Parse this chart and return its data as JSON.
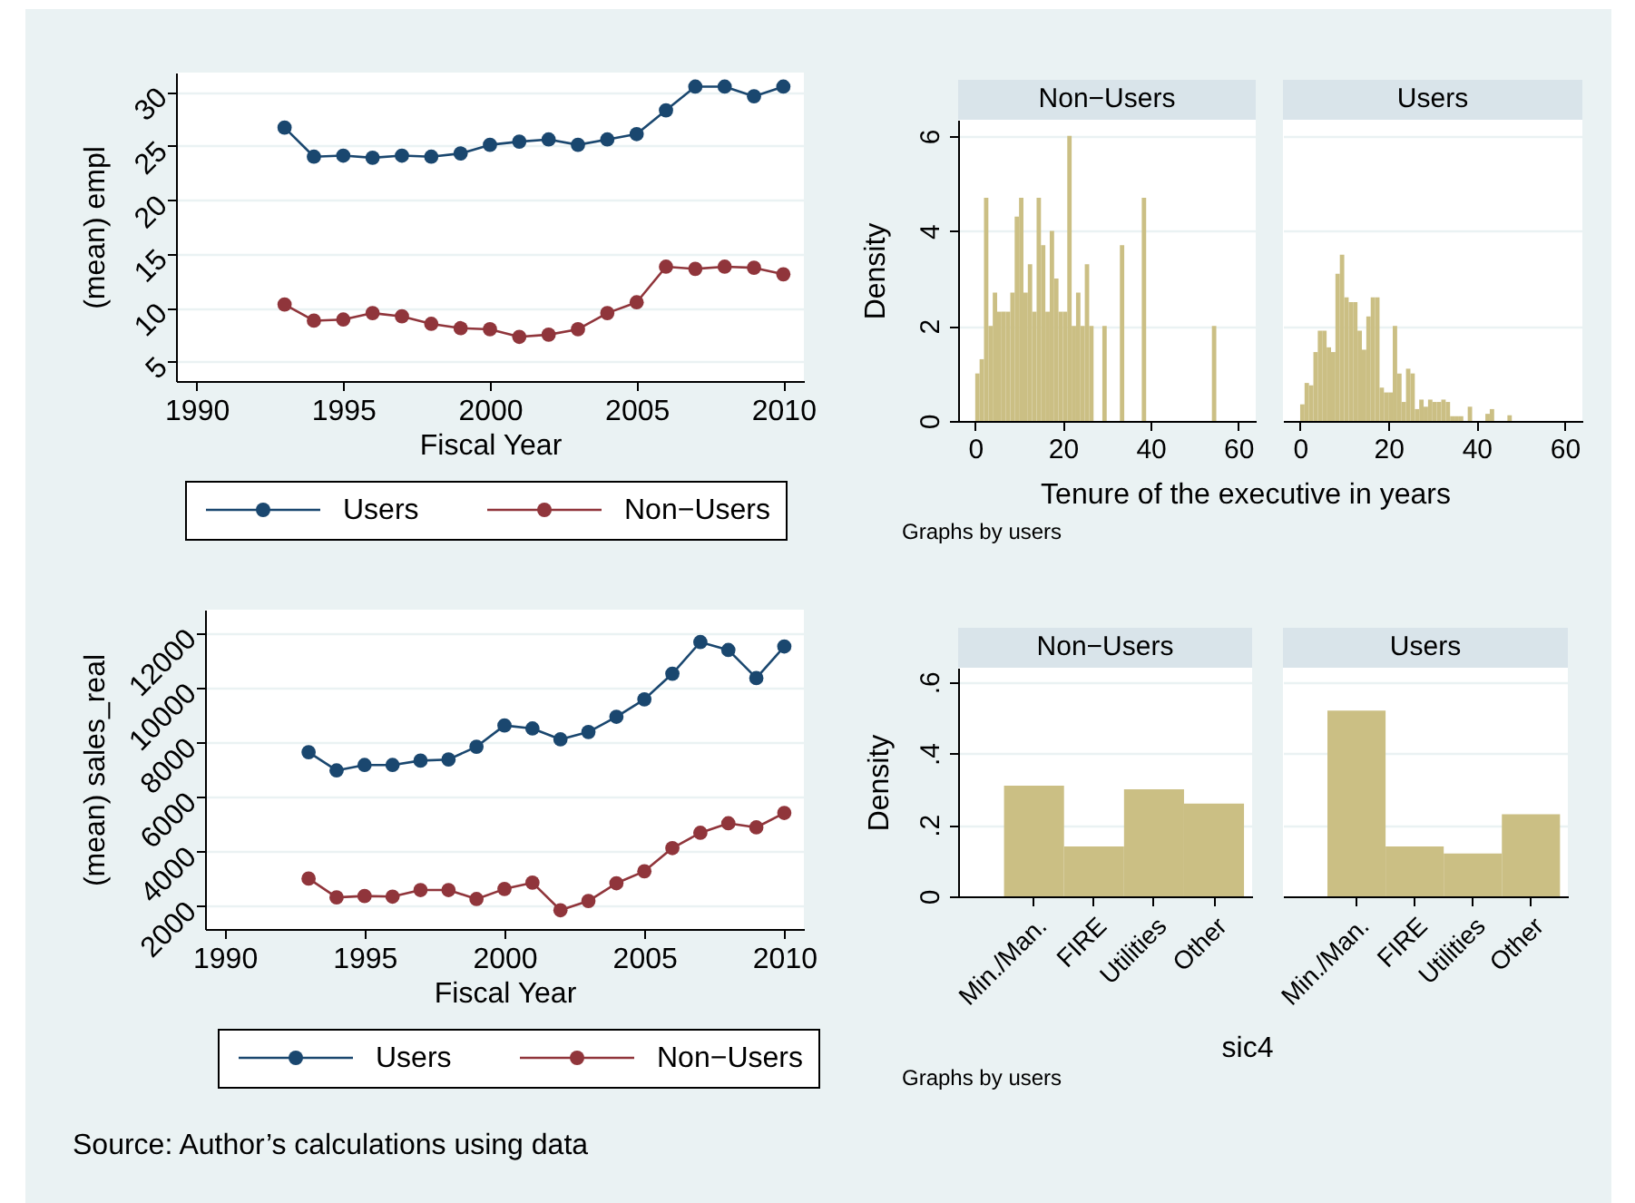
{
  "chart_data": [
    {
      "type": "line",
      "xlabel": "Fiscal Year",
      "ylabel": "(mean) empl",
      "x": [
        1993,
        1994,
        1995,
        1996,
        1997,
        1998,
        1999,
        2000,
        2001,
        2002,
        2003,
        2004,
        2005,
        2006,
        2007,
        2008,
        2009,
        2010
      ],
      "series": [
        {
          "name": "Users",
          "color": "#1a476f",
          "values": [
            26.7,
            24.0,
            24.1,
            23.9,
            24.1,
            24.0,
            24.3,
            25.1,
            25.4,
            25.6,
            25.1,
            25.6,
            26.1,
            28.3,
            30.5,
            30.5,
            29.6,
            30.5
          ]
        },
        {
          "name": "Non−Users",
          "color": "#90353b",
          "values": [
            10.3,
            8.8,
            8.9,
            9.5,
            9.2,
            8.5,
            8.1,
            8.0,
            7.3,
            7.5,
            8.0,
            9.5,
            10.5,
            13.8,
            13.6,
            13.8,
            13.7,
            13.1
          ]
        }
      ],
      "xlim": [
        1989.3,
        2010.7
      ],
      "xticks": [
        1990,
        1995,
        2000,
        2005,
        2010
      ],
      "ylim": [
        3.2,
        31.8
      ],
      "yticks": [
        5,
        10,
        15,
        20,
        25,
        30
      ],
      "grid": "y",
      "legend": "bottom",
      "marker": "circle",
      "line_style": "solid"
    },
    {
      "type": "histogram",
      "title": "Non−Users",
      "ylabel": "Density",
      "xlabel": "Tenure of the executive in years",
      "color": "#cbbf84",
      "bins": [
        0,
        1,
        2,
        3,
        4,
        5,
        6,
        7,
        8,
        9,
        10,
        11,
        12,
        13,
        14,
        15,
        16,
        17,
        18,
        19,
        20,
        21,
        22,
        23,
        24,
        25,
        26,
        27,
        29,
        30,
        33,
        34,
        38,
        39,
        54,
        55
      ],
      "values": [
        1.0,
        1.3,
        4.7,
        2.0,
        2.7,
        2.3,
        2.3,
        2.3,
        2.7,
        4.3,
        4.7,
        2.7,
        3.3,
        2.3,
        4.7,
        3.7,
        2.3,
        4.0,
        3.0,
        2.3,
        2.3,
        6.0,
        2.0,
        2.7,
        2.0,
        3.3,
        2.0,
        0,
        2.0,
        0,
        3.7,
        0,
        4.7,
        0,
        2.0
      ],
      "xlim": [
        -3.9,
        64
      ],
      "xticks": [
        0,
        20,
        40,
        60
      ],
      "ylim": [
        0,
        6.34
      ],
      "yticks": [
        0,
        2,
        4,
        6
      ],
      "grid": "y",
      "annotations": [
        "Graphs by users"
      ]
    },
    {
      "type": "histogram",
      "title": "Users",
      "color": "#cbbf84",
      "bins": [
        0,
        1,
        2,
        3,
        4,
        5,
        6,
        7,
        8,
        9,
        10,
        11,
        12,
        13,
        14,
        15,
        16,
        17,
        18,
        19,
        20,
        21,
        22,
        23,
        24,
        25,
        26,
        27,
        28,
        29,
        30,
        31,
        32,
        33,
        34,
        35,
        36,
        37,
        38,
        39,
        42,
        43,
        44,
        47,
        48
      ],
      "values": [
        0.35,
        0.8,
        0.75,
        1.45,
        1.9,
        1.9,
        1.55,
        1.45,
        3.1,
        3.5,
        2.6,
        2.5,
        2.5,
        1.9,
        1.5,
        2.2,
        2.6,
        2.6,
        0.7,
        0.6,
        0.6,
        2.0,
        1.0,
        0.4,
        1.1,
        1.0,
        0.25,
        0.45,
        0.3,
        0.45,
        0.4,
        0.4,
        0.45,
        0.4,
        0.1,
        0.1,
        0.1,
        0,
        0.3,
        0,
        0.15,
        0.25,
        0,
        0.12
      ],
      "xlim": [
        -3.9,
        64
      ],
      "xticks": [
        0,
        20,
        40,
        60
      ],
      "ylim": [
        0,
        6.34
      ],
      "yticks": [
        0,
        2,
        4,
        6
      ],
      "grid": "y",
      "tick_labels": "x"
    },
    {
      "type": "line",
      "xlabel": "Fiscal Year",
      "ylabel": "(mean) sales_real",
      "x": [
        1993,
        1994,
        1995,
        1996,
        1997,
        1998,
        1999,
        2000,
        2001,
        2002,
        2003,
        2004,
        2005,
        2006,
        2007,
        2008,
        2009,
        2010
      ],
      "series": [
        {
          "name": "Users",
          "color": "#1a476f",
          "values": [
            7640,
            6970,
            7170,
            7170,
            7330,
            7370,
            7840,
            8620,
            8510,
            8110,
            8380,
            8940,
            9580,
            10520,
            11680,
            11390,
            10360,
            11520
          ]
        },
        {
          "name": "Non−Users",
          "color": "#90353b",
          "values": [
            3000,
            2310,
            2360,
            2340,
            2580,
            2580,
            2250,
            2620,
            2850,
            1840,
            2180,
            2830,
            3270,
            4120,
            4680,
            5030,
            4880,
            5410
          ]
        }
      ],
      "xlim": [
        1989.3,
        2010.7
      ],
      "xticks": [
        1990,
        1995,
        2000,
        2005,
        2010
      ],
      "ylim": [
        1150,
        12870
      ],
      "yticks": [
        2000,
        4000,
        6000,
        8000,
        10000,
        12000
      ],
      "grid": "y",
      "legend": "bottom",
      "marker": "circle",
      "line_style": "solid",
      "annotations": [
        "Source: Author’s calculations using data"
      ]
    },
    {
      "type": "bar",
      "title": "Non−Users",
      "ylabel": "Density",
      "xlabel": "sic4",
      "categories": [
        "Min./Man.",
        "FIRE",
        "Utilities",
        "Other"
      ],
      "values": [
        0.31,
        0.14,
        0.3,
        0.26
      ],
      "color": "#cbbf84",
      "ylim": [
        0,
        0.64
      ],
      "yticks": [
        0,
        {
          "value": 0.2,
          "label": ".2"
        },
        {
          "value": 0.4,
          "label": ".4"
        },
        {
          "value": 0.6,
          "label": ".6"
        }
      ],
      "grid": "y",
      "annotations": [
        "Graphs by users"
      ]
    },
    {
      "type": "bar",
      "title": "Users",
      "categories": [
        "Min./Man.",
        "FIRE",
        "Utilities",
        "Other"
      ],
      "values": [
        0.52,
        0.14,
        0.12,
        0.23
      ],
      "color": "#cbbf84",
      "ylim": [
        0,
        0.64
      ],
      "yticks": [
        0,
        0.2,
        0.4,
        0.6
      ],
      "grid": "y",
      "tick_labels": "x"
    }
  ]
}
